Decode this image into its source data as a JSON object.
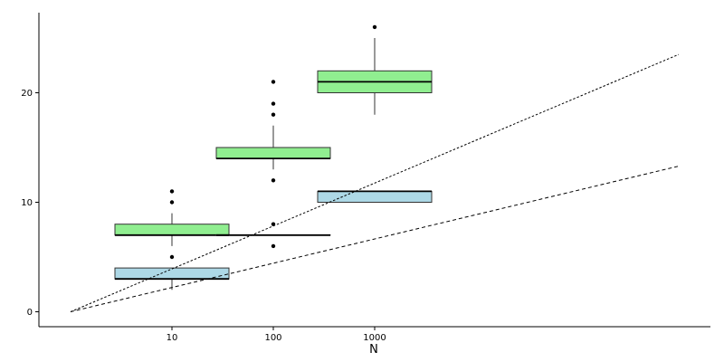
{
  "chart_data": {
    "type": "boxplot",
    "xlabel": "N",
    "ylabel": "",
    "x_scale": "categorical (log-spaced)",
    "categories": [
      "10",
      "100",
      "1000"
    ],
    "y_ticks": [
      0,
      10,
      20
    ],
    "ylim": [
      -1.3,
      27.5
    ],
    "grid": false,
    "legend": "none",
    "series": [
      {
        "color": "#90ee90",
        "boxes": [
          {
            "category": "10",
            "q1": 7,
            "median": 7,
            "q3": 8,
            "whisker_low": 6,
            "whisker_high": 9,
            "outliers": [
              5,
              10,
              11
            ]
          },
          {
            "category": "100",
            "q1": 14,
            "median": 14,
            "q3": 15,
            "whisker_low": 13,
            "whisker_high": 17,
            "outliers": [
              12,
              18,
              19,
              21
            ]
          },
          {
            "category": "1000",
            "q1": 20,
            "median": 21,
            "q3": 22,
            "whisker_low": 18,
            "whisker_high": 25,
            "outliers": [
              26
            ]
          }
        ],
        "trend_line": {
          "style": "dotted",
          "x": [
            1,
            1000000
          ],
          "y": [
            0,
            23.5
          ]
        }
      },
      {
        "color": "#add8e6",
        "boxes": [
          {
            "category": "10",
            "q1": 3,
            "median": 3,
            "q3": 4,
            "whisker_low": 2,
            "whisker_high": 4,
            "outliers": []
          },
          {
            "category": "100",
            "q1": 7,
            "median": 7,
            "q3": 7,
            "whisker_low": 7,
            "whisker_high": 7,
            "outliers": [
              6,
              8
            ]
          },
          {
            "category": "1000",
            "q1": 10,
            "median": 11,
            "q3": 11,
            "whisker_low": 10,
            "whisker_high": 11,
            "outliers": []
          }
        ],
        "trend_line": {
          "style": "dashed",
          "x": [
            1,
            1000000
          ],
          "y": [
            0,
            13.3
          ]
        }
      }
    ]
  }
}
